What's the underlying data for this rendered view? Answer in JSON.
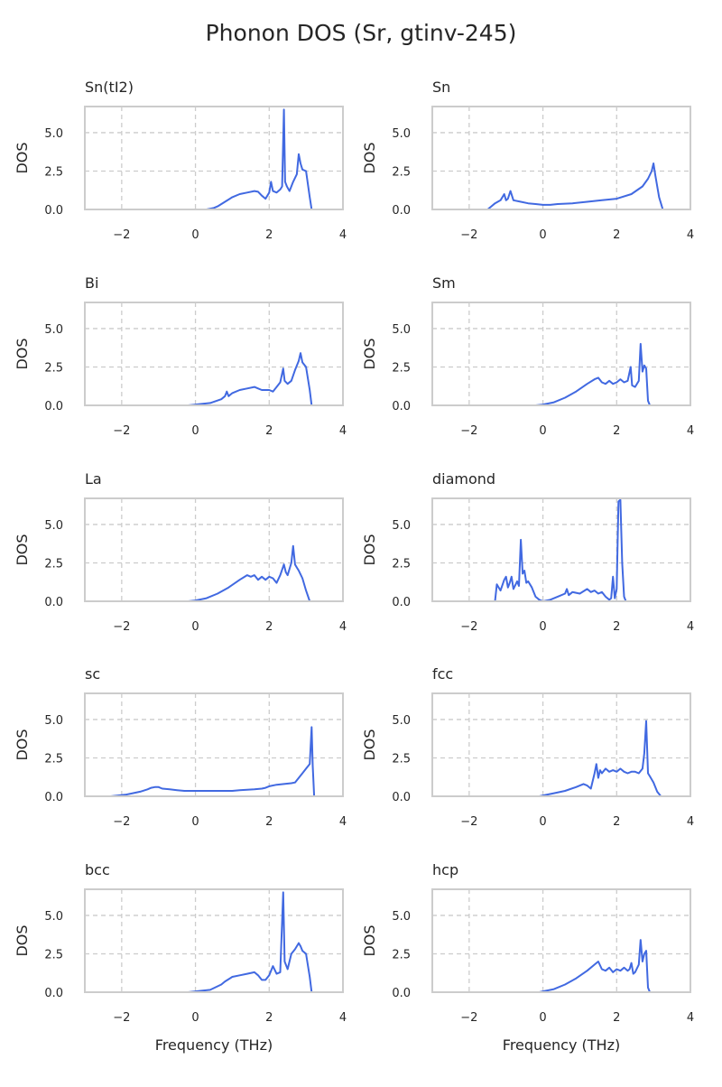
{
  "figure": {
    "title": "Phonon DOS (Sr, gtinv-245)"
  },
  "style": {
    "line_color": "#4169e1",
    "axis_color": "#cccccc",
    "grid_color": "#cccccc",
    "text_color": "#262626"
  },
  "chart_data": [
    {
      "type": "line",
      "title": "Sn(tI2)",
      "ylabel": "DOS",
      "xlabel": "",
      "xlim": [
        -3,
        4
      ],
      "ylim": [
        0,
        6.7
      ],
      "xticks": [
        "−2",
        "0",
        "2",
        "4"
      ],
      "yticks": [
        "0.0",
        "2.5",
        "5.0"
      ],
      "grid": "dashed vertical and horizontal",
      "series": [
        {
          "x": [
            -1.0,
            0.3,
            0.5,
            0.6,
            0.8,
            1.0,
            1.2,
            1.4,
            1.6,
            1.7,
            1.8,
            1.9,
            2.0,
            2.05,
            2.1,
            2.2,
            2.3,
            2.35,
            2.4,
            2.43,
            2.48,
            2.55,
            2.65,
            2.75,
            2.8,
            2.85,
            2.9,
            3.0,
            3.1,
            3.15,
            3.3
          ],
          "y": [
            0,
            0,
            0.1,
            0.2,
            0.5,
            0.8,
            1.0,
            1.1,
            1.2,
            1.15,
            0.9,
            0.7,
            1.1,
            1.8,
            1.2,
            1.1,
            1.3,
            1.5,
            6.5,
            1.8,
            1.5,
            1.2,
            1.8,
            2.3,
            3.6,
            3.0,
            2.6,
            2.5,
            0.8,
            0,
            0
          ]
        }
      ]
    },
    {
      "type": "line",
      "title": "Sn",
      "ylabel": "DOS",
      "xlabel": "",
      "xlim": [
        -3,
        4
      ],
      "ylim": [
        0,
        6.7
      ],
      "xticks": [
        "−2",
        "0",
        "2",
        "4"
      ],
      "yticks": [
        "0.0",
        "2.5",
        "5.0"
      ],
      "grid": "dashed vertical and horizontal",
      "series": [
        {
          "x": [
            -1.5,
            -1.4,
            -1.3,
            -1.15,
            -1.05,
            -1.0,
            -0.95,
            -0.88,
            -0.8,
            -0.6,
            -0.4,
            -0.2,
            0.0,
            0.2,
            0.4,
            0.8,
            1.2,
            1.6,
            2.0,
            2.4,
            2.7,
            2.85,
            2.95,
            3.0,
            3.05,
            3.15,
            3.25,
            3.4
          ],
          "y": [
            0,
            0.2,
            0.4,
            0.6,
            1.0,
            0.6,
            0.7,
            1.2,
            0.6,
            0.5,
            0.4,
            0.35,
            0.3,
            0.3,
            0.35,
            0.4,
            0.5,
            0.6,
            0.7,
            1.0,
            1.5,
            2.0,
            2.5,
            3.0,
            2.2,
            0.8,
            0,
            0
          ]
        }
      ]
    },
    {
      "type": "line",
      "title": "Bi",
      "ylabel": "DOS",
      "xlabel": "",
      "xlim": [
        -3,
        4
      ],
      "ylim": [
        0,
        6.7
      ],
      "xticks": [
        "−2",
        "0",
        "2",
        "4"
      ],
      "yticks": [
        "0.0",
        "2.5",
        "5.0"
      ],
      "grid": "dashed vertical and horizontal",
      "series": [
        {
          "x": [
            -1.0,
            -0.2,
            0.0,
            0.4,
            0.7,
            0.8,
            0.85,
            0.9,
            1.0,
            1.2,
            1.4,
            1.6,
            1.7,
            1.8,
            2.0,
            2.1,
            2.2,
            2.3,
            2.38,
            2.42,
            2.5,
            2.6,
            2.7,
            2.8,
            2.85,
            2.9,
            3.0,
            3.1,
            3.15,
            3.3
          ],
          "y": [
            0,
            0,
            0.05,
            0.15,
            0.4,
            0.6,
            0.9,
            0.6,
            0.8,
            1.0,
            1.1,
            1.2,
            1.1,
            1.0,
            1.0,
            0.9,
            1.2,
            1.5,
            2.4,
            1.6,
            1.4,
            1.6,
            2.3,
            2.9,
            3.4,
            2.8,
            2.5,
            1.0,
            0,
            0
          ]
        }
      ]
    },
    {
      "type": "line",
      "title": "Sm",
      "ylabel": "DOS",
      "xlabel": "",
      "xlim": [
        -3,
        4
      ],
      "ylim": [
        0,
        6.7
      ],
      "xticks": [
        "−2",
        "0",
        "2",
        "4"
      ],
      "yticks": [
        "0.0",
        "2.5",
        "5.0"
      ],
      "grid": "dashed vertical and horizontal",
      "series": [
        {
          "x": [
            -1.0,
            -0.2,
            0.0,
            0.3,
            0.6,
            0.9,
            1.2,
            1.4,
            1.5,
            1.6,
            1.7,
            1.8,
            1.9,
            2.0,
            2.1,
            2.2,
            2.3,
            2.38,
            2.42,
            2.5,
            2.6,
            2.65,
            2.7,
            2.75,
            2.8,
            2.85,
            2.9,
            3.0
          ],
          "y": [
            0,
            0,
            0.05,
            0.2,
            0.5,
            0.9,
            1.4,
            1.7,
            1.8,
            1.5,
            1.4,
            1.6,
            1.4,
            1.5,
            1.7,
            1.5,
            1.6,
            2.5,
            1.3,
            1.2,
            1.6,
            4.0,
            2.2,
            2.6,
            2.4,
            0.3,
            0,
            0
          ]
        }
      ]
    },
    {
      "type": "line",
      "title": "La",
      "ylabel": "DOS",
      "xlabel": "",
      "xlim": [
        -3,
        4
      ],
      "ylim": [
        0,
        6.7
      ],
      "xticks": [
        "−2",
        "0",
        "2",
        "4"
      ],
      "yticks": [
        "0.0",
        "2.5",
        "5.0"
      ],
      "grid": "dashed vertical and horizontal",
      "series": [
        {
          "x": [
            -1.0,
            -0.2,
            0.0,
            0.3,
            0.6,
            0.9,
            1.2,
            1.4,
            1.5,
            1.6,
            1.7,
            1.8,
            1.9,
            2.0,
            2.1,
            2.2,
            2.3,
            2.4,
            2.45,
            2.5,
            2.6,
            2.65,
            2.7,
            2.75,
            2.8,
            2.9,
            3.0,
            3.1,
            3.3
          ],
          "y": [
            0,
            0,
            0.05,
            0.2,
            0.5,
            0.9,
            1.4,
            1.7,
            1.6,
            1.7,
            1.4,
            1.6,
            1.4,
            1.6,
            1.5,
            1.2,
            1.7,
            2.4,
            1.9,
            1.7,
            2.5,
            3.6,
            2.4,
            2.2,
            2.0,
            1.5,
            0.7,
            0,
            0
          ]
        }
      ]
    },
    {
      "type": "line",
      "title": "diamond",
      "ylabel": "DOS",
      "xlabel": "",
      "xlim": [
        -3,
        4
      ],
      "ylim": [
        0,
        6.7
      ],
      "xticks": [
        "−2",
        "0",
        "2",
        "4"
      ],
      "yticks": [
        "0.0",
        "2.5",
        "5.0"
      ],
      "grid": "dashed vertical and horizontal",
      "series": [
        {
          "x": [
            -1.5,
            -1.3,
            -1.25,
            -1.15,
            -1.05,
            -1.0,
            -0.95,
            -0.9,
            -0.85,
            -0.8,
            -0.7,
            -0.65,
            -0.6,
            -0.55,
            -0.5,
            -0.45,
            -0.4,
            -0.3,
            -0.2,
            -0.1,
            0.0,
            0.2,
            0.4,
            0.6,
            0.65,
            0.7,
            0.8,
            1.0,
            1.2,
            1.3,
            1.4,
            1.5,
            1.6,
            1.7,
            1.8,
            1.85,
            1.9,
            1.95,
            2.0,
            2.05,
            2.1,
            2.15,
            2.2,
            2.25,
            2.4,
            2.6
          ],
          "y": [
            0,
            0,
            1.1,
            0.7,
            1.4,
            1.6,
            0.9,
            1.2,
            1.6,
            0.8,
            1.3,
            1.0,
            4.0,
            1.8,
            2.0,
            1.2,
            1.3,
            0.9,
            0.3,
            0.1,
            0,
            0.1,
            0.3,
            0.5,
            0.8,
            0.4,
            0.6,
            0.5,
            0.8,
            0.6,
            0.7,
            0.5,
            0.6,
            0.3,
            0.1,
            0.2,
            1.6,
            0.2,
            0.8,
            6.5,
            6.6,
            2.5,
            0.3,
            0,
            0,
            0
          ]
        }
      ]
    },
    {
      "type": "line",
      "title": "sc",
      "ylabel": "DOS",
      "xlabel": "",
      "xlim": [
        -3,
        4
      ],
      "ylim": [
        0,
        6.7
      ],
      "xticks": [
        "−2",
        "0",
        "2",
        "4"
      ],
      "yticks": [
        "0.0",
        "2.5",
        "5.0"
      ],
      "grid": "dashed vertical and horizontal",
      "series": [
        {
          "x": [
            -2.3,
            -1.9,
            -1.7,
            -1.5,
            -1.3,
            -1.2,
            -1.1,
            -1.0,
            -0.9,
            -0.7,
            -0.5,
            -0.3,
            0.0,
            0.5,
            1.0,
            1.2,
            1.6,
            1.8,
            1.9,
            2.0,
            2.2,
            2.4,
            2.6,
            2.7,
            2.8,
            2.9,
            3.0,
            3.1,
            3.12,
            3.15,
            3.18,
            3.22,
            3.4
          ],
          "y": [
            0,
            0.1,
            0.2,
            0.3,
            0.45,
            0.55,
            0.6,
            0.6,
            0.5,
            0.45,
            0.4,
            0.35,
            0.35,
            0.35,
            0.35,
            0.4,
            0.45,
            0.5,
            0.55,
            0.65,
            0.75,
            0.8,
            0.85,
            0.9,
            1.2,
            1.5,
            1.8,
            2.1,
            3.0,
            4.5,
            2.0,
            0,
            0
          ]
        }
      ]
    },
    {
      "type": "line",
      "title": "fcc",
      "ylabel": "DOS",
      "xlabel": "",
      "xlim": [
        -3,
        4
      ],
      "ylim": [
        0,
        6.7
      ],
      "xticks": [
        "−2",
        "0",
        "2",
        "4"
      ],
      "yticks": [
        "0.0",
        "2.5",
        "5.0"
      ],
      "grid": "dashed vertical and horizontal",
      "series": [
        {
          "x": [
            -1.0,
            -0.1,
            0.0,
            0.3,
            0.6,
            0.9,
            1.1,
            1.2,
            1.3,
            1.4,
            1.45,
            1.5,
            1.55,
            1.6,
            1.7,
            1.8,
            1.9,
            2.0,
            2.1,
            2.2,
            2.3,
            2.4,
            2.5,
            2.6,
            2.7,
            2.75,
            2.8,
            2.85,
            2.9,
            3.0,
            3.1,
            3.2
          ],
          "y": [
            0,
            0,
            0.05,
            0.2,
            0.35,
            0.6,
            0.8,
            0.7,
            0.5,
            1.5,
            2.1,
            1.2,
            1.7,
            1.5,
            1.8,
            1.6,
            1.7,
            1.6,
            1.8,
            1.6,
            1.5,
            1.6,
            1.6,
            1.5,
            1.8,
            2.8,
            4.9,
            1.5,
            1.3,
            0.9,
            0.3,
            0
          ]
        }
      ]
    },
    {
      "type": "line",
      "title": "bcc",
      "ylabel": "DOS",
      "xlabel": "Frequency (THz)",
      "xlim": [
        -3,
        4
      ],
      "ylim": [
        0,
        6.7
      ],
      "xticks": [
        "−2",
        "0",
        "2",
        "4"
      ],
      "yticks": [
        "0.0",
        "2.5",
        "5.0"
      ],
      "grid": "dashed vertical and horizontal",
      "series": [
        {
          "x": [
            -1.0,
            -0.2,
            0.0,
            0.4,
            0.7,
            0.8,
            1.0,
            1.2,
            1.4,
            1.6,
            1.7,
            1.8,
            1.9,
            2.0,
            2.1,
            2.2,
            2.3,
            2.38,
            2.42,
            2.5,
            2.6,
            2.7,
            2.8,
            2.85,
            2.9,
            3.0,
            3.1,
            3.15,
            3.3
          ],
          "y": [
            0,
            0,
            0.05,
            0.15,
            0.5,
            0.7,
            1.0,
            1.1,
            1.2,
            1.3,
            1.1,
            0.8,
            0.8,
            1.1,
            1.7,
            1.2,
            1.3,
            6.5,
            2.0,
            1.5,
            2.5,
            2.8,
            3.2,
            3.0,
            2.7,
            2.5,
            1.0,
            0,
            0
          ]
        }
      ]
    },
    {
      "type": "line",
      "title": "hcp",
      "ylabel": "DOS",
      "xlabel": "Frequency (THz)",
      "xlim": [
        -3,
        4
      ],
      "ylim": [
        0,
        6.7
      ],
      "xticks": [
        "−2",
        "0",
        "2",
        "4"
      ],
      "yticks": [
        "0.0",
        "2.5",
        "5.0"
      ],
      "grid": "dashed vertical and horizontal",
      "series": [
        {
          "x": [
            -1.0,
            -0.1,
            0.0,
            0.3,
            0.6,
            0.9,
            1.2,
            1.4,
            1.5,
            1.6,
            1.7,
            1.8,
            1.9,
            2.0,
            2.1,
            2.2,
            2.3,
            2.35,
            2.4,
            2.45,
            2.5,
            2.6,
            2.65,
            2.7,
            2.75,
            2.8,
            2.85,
            2.9,
            3.0
          ],
          "y": [
            0,
            0,
            0.05,
            0.2,
            0.5,
            0.9,
            1.4,
            1.8,
            2.0,
            1.5,
            1.4,
            1.6,
            1.3,
            1.5,
            1.4,
            1.6,
            1.4,
            1.5,
            1.9,
            1.2,
            1.3,
            1.8,
            3.4,
            2.0,
            2.5,
            2.7,
            0.3,
            0,
            0
          ]
        }
      ]
    }
  ]
}
